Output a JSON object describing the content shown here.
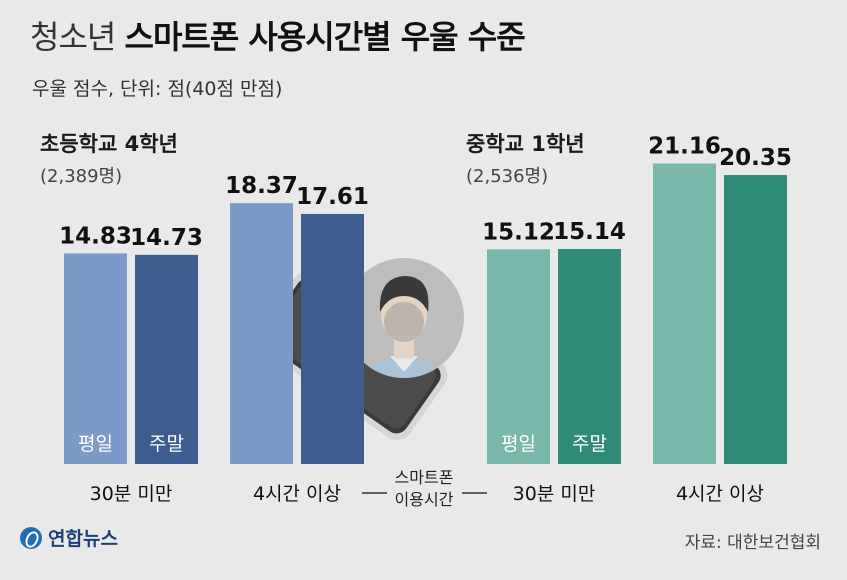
{
  "title_light": "청소년",
  "title_bold": "스마트폰 사용시간별 우울 수준",
  "subtitle": "우울 점수, 단위: 점(40점 만점)",
  "source": "자료: 대한보건협회",
  "logo_text": "연합뉴스",
  "groups": [
    {
      "title": "초등학교 4학년",
      "count": "(2,389명)"
    },
    {
      "title": "중학교 1학년",
      "count": "(2,536명)"
    }
  ],
  "colors": {
    "elem_weekday": "#7b9ac8",
    "elem_weekend": "#3d5d8f",
    "mid_weekday": "#79b7ab",
    "mid_weekend": "#2f8a76"
  },
  "chart_data": {
    "type": "bar",
    "ylim": [
      0,
      40
    ],
    "middle_axis_label": "스마트폰 이용시간",
    "groups": [
      {
        "name": "초등학교 4학년",
        "categories": [
          "30분 미만",
          "4시간 이상"
        ],
        "series": [
          {
            "name": "평일",
            "values": [
              14.83,
              18.37
            ]
          },
          {
            "name": "주말",
            "values": [
              14.73,
              17.61
            ]
          }
        ]
      },
      {
        "name": "중학교 1학년",
        "categories": [
          "30분 미만",
          "4시간 이상"
        ],
        "series": [
          {
            "name": "평일",
            "values": [
              15.12,
              21.16
            ]
          },
          {
            "name": "주말",
            "values": [
              15.14,
              20.35
            ]
          }
        ]
      }
    ]
  }
}
